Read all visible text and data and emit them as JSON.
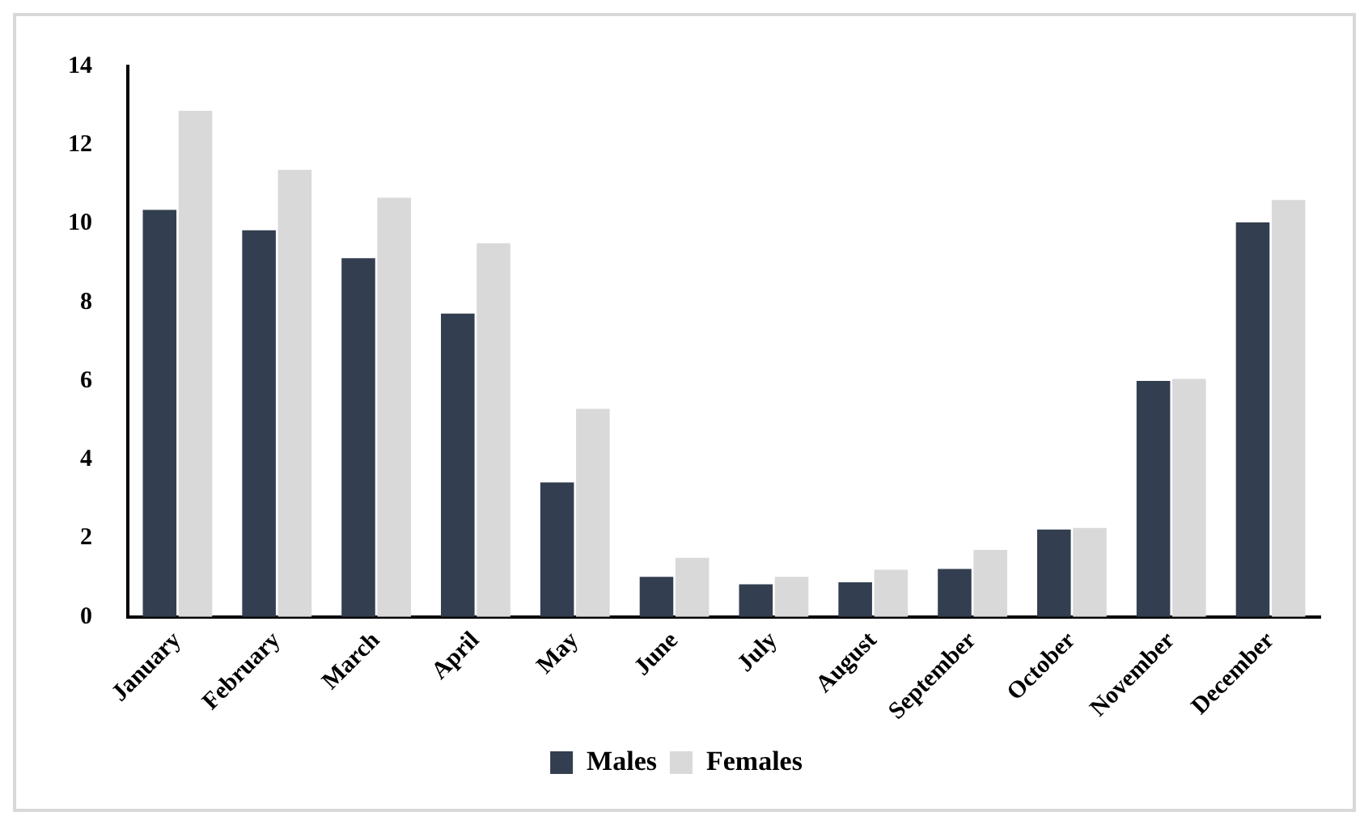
{
  "chart_data": {
    "type": "bar",
    "categories": [
      "January",
      "February",
      "March",
      "April",
      "May",
      "June",
      "July",
      "August",
      "September",
      "October",
      "November",
      "December"
    ],
    "series": [
      {
        "name": "Males",
        "color": "#333f50",
        "values": [
          10.35,
          9.83,
          9.12,
          7.71,
          3.42,
          1.02,
          0.83,
          0.88,
          1.22,
          2.22,
          6.0,
          10.03
        ]
      },
      {
        "name": "Females",
        "color": "#d9d9d9",
        "values": [
          12.87,
          11.37,
          10.66,
          9.5,
          5.29,
          1.5,
          1.02,
          1.2,
          1.7,
          2.26,
          6.05,
          10.6
        ]
      }
    ],
    "ylim": [
      0,
      14
    ],
    "yticks": [
      0,
      2,
      4,
      6,
      8,
      10,
      12,
      14
    ],
    "grid": false,
    "legend": "bottom"
  }
}
